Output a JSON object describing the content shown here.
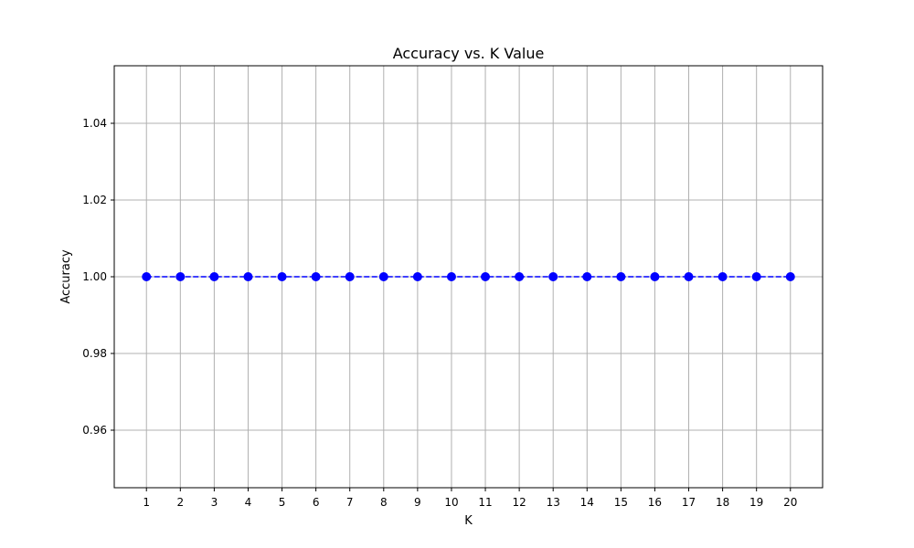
{
  "chart_data": {
    "type": "line",
    "title": "Accuracy vs. K Value",
    "xlabel": "K",
    "ylabel": "Accuracy",
    "x": [
      1,
      2,
      3,
      4,
      5,
      6,
      7,
      8,
      9,
      10,
      11,
      12,
      13,
      14,
      15,
      16,
      17,
      18,
      19,
      20
    ],
    "series": [
      {
        "values": [
          1.0,
          1.0,
          1.0,
          1.0,
          1.0,
          1.0,
          1.0,
          1.0,
          1.0,
          1.0,
          1.0,
          1.0,
          1.0,
          1.0,
          1.0,
          1.0,
          1.0,
          1.0,
          1.0,
          1.0
        ],
        "color": "#0000ff",
        "line_style": "dashed",
        "marker": "circle"
      }
    ],
    "xlim": [
      0.05,
      20.95
    ],
    "ylim": [
      0.945,
      1.055
    ],
    "x_ticks": [
      1,
      2,
      3,
      4,
      5,
      6,
      7,
      8,
      9,
      10,
      11,
      12,
      13,
      14,
      15,
      16,
      17,
      18,
      19,
      20
    ],
    "x_tick_labels": [
      "1",
      "2",
      "3",
      "4",
      "5",
      "6",
      "7",
      "8",
      "9",
      "10",
      "11",
      "12",
      "13",
      "14",
      "15",
      "16",
      "17",
      "18",
      "19",
      "20"
    ],
    "y_ticks": [
      0.96,
      0.98,
      1.0,
      1.02,
      1.04
    ],
    "y_tick_labels": [
      "0.96",
      "0.98",
      "1.00",
      "1.02",
      "1.04"
    ],
    "grid": true,
    "grid_color": "#b0b0b0",
    "legend": false
  }
}
